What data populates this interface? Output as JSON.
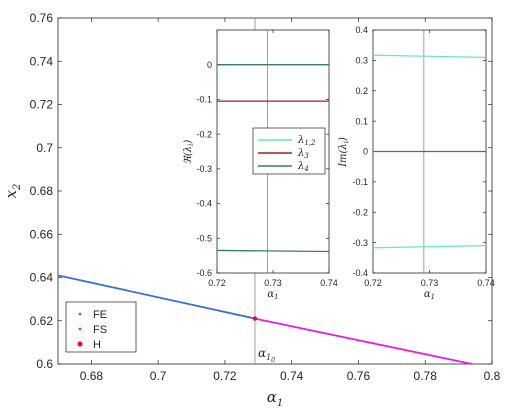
{
  "chart_data": [
    {
      "type": "line",
      "role": "main",
      "xlabel": "α",
      "xlabel_sub": "1",
      "ylabel": "x",
      "ylabel_sub": "2",
      "xlim": [
        0.67,
        0.8
      ],
      "ylim": [
        0.6,
        0.76
      ],
      "xticks": [
        0.68,
        0.7,
        0.72,
        0.74,
        0.76,
        0.78,
        0.8
      ],
      "xtick_labels": [
        "0.68",
        "0.7",
        "0.72",
        "0.74",
        "0.76",
        "0.78",
        "0.8"
      ],
      "yticks": [
        0.6,
        0.62,
        0.64,
        0.66,
        0.68,
        0.7,
        0.72,
        0.74,
        0.76
      ],
      "ytick_labels": [
        "0.6",
        "0.62",
        "0.64",
        "0.66",
        "0.68",
        "0.7",
        "0.72",
        "0.74",
        "0.76"
      ],
      "grid": false,
      "legend_position": "bottom-left",
      "series": [
        {
          "name": "FE",
          "color": "#3b6fd6",
          "x": [
            0.67,
            0.729
          ],
          "y": [
            0.641,
            0.621
          ]
        },
        {
          "name": "FS",
          "color": "#e21fe3",
          "x": [
            0.729,
            0.794
          ],
          "y": [
            0.621,
            0.6
          ]
        }
      ],
      "points": [
        {
          "name": "H",
          "color": "#e0142c",
          "x": 0.729,
          "y": 0.621
        }
      ],
      "vline": {
        "x": 0.729,
        "label": "α",
        "label_sub": "1",
        "label_sub2": "0",
        "color": "#888888"
      }
    },
    {
      "type": "line",
      "role": "inset-real",
      "ylabel": "ℜ(λ",
      "ylabel_sub": "i",
      "ylabel_end": ")",
      "xlabel": "α",
      "xlabel_sub": "1",
      "xlim": [
        0.72,
        0.74
      ],
      "ylim": [
        -0.6,
        0.1
      ],
      "xticks": [
        0.72,
        0.73,
        0.74
      ],
      "xtick_labels": [
        "0.72",
        "0.73",
        "0.74"
      ],
      "yticks": [
        0,
        -0.1,
        -0.2,
        -0.3,
        -0.4,
        -0.5,
        -0.6
      ],
      "ytick_labels": [
        "0",
        "-0.1",
        "-0.2",
        "-0.3",
        "-0.4",
        "-0.5",
        "-0.6"
      ],
      "legend_position": "center-right",
      "series": [
        {
          "name": "λ",
          "name_sub": "1,2",
          "color": "#68e6c8",
          "x": [
            0.72,
            0.74
          ],
          "y": [
            0.0,
            0.0
          ]
        },
        {
          "name": "λ",
          "name_sub": "3",
          "color": "#a61f1f",
          "x": [
            0.72,
            0.74
          ],
          "y": [
            -0.105,
            -0.105
          ]
        },
        {
          "name": "λ",
          "name_sub": "4",
          "color": "#3a7a6e",
          "x": [
            0.72,
            0.74
          ],
          "y": [
            -0.535,
            -0.538
          ]
        },
        {
          "name": "",
          "color": "#3a7a6e",
          "legend": false,
          "x": [
            0.72,
            0.74
          ],
          "y": [
            0.0,
            0.0
          ]
        }
      ],
      "vline": {
        "x": 0.729,
        "color": "#888888"
      }
    },
    {
      "type": "line",
      "role": "inset-imag",
      "ylabel": "Im(λ",
      "ylabel_sub": "i",
      "ylabel_end": ")",
      "xlabel": "α",
      "xlabel_sub": "1",
      "xlim": [
        0.72,
        0.74
      ],
      "ylim": [
        -0.4,
        0.4
      ],
      "xticks": [
        0.72,
        0.73,
        0.74
      ],
      "xtick_labels": [
        "0.72",
        "0.73",
        "0.74"
      ],
      "yticks": [
        0.4,
        0.3,
        0.2,
        0.1,
        0,
        -0.1,
        -0.2,
        -0.3,
        -0.4
      ],
      "ytick_labels": [
        "0.4",
        "0.3",
        "0.2",
        "0.1",
        "0",
        "-0.1",
        "-0.2",
        "-0.3",
        "-0.4"
      ],
      "series": [
        {
          "name": "",
          "color": "#68e6c8",
          "x": [
            0.72,
            0.74
          ],
          "y": [
            0.317,
            0.31
          ]
        },
        {
          "name": "",
          "color": "#68e6c8",
          "x": [
            0.72,
            0.74
          ],
          "y": [
            -0.317,
            -0.31
          ]
        },
        {
          "name": "",
          "color": "#3a7a6e",
          "x": [
            0.72,
            0.74
          ],
          "y": [
            0.0,
            0.0
          ]
        }
      ],
      "vline": {
        "x": 0.729,
        "color": "#888888"
      }
    }
  ]
}
